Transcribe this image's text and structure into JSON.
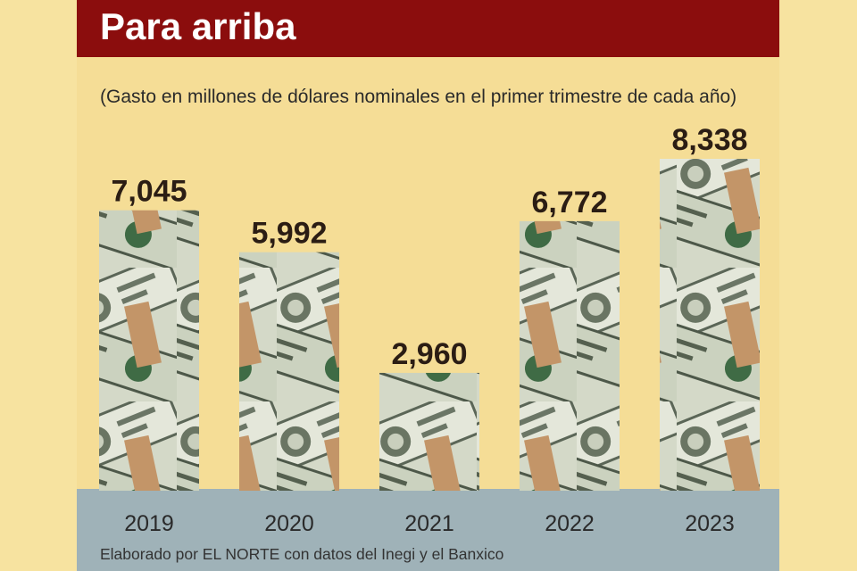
{
  "header": {
    "title": "Para arriba"
  },
  "subtitle": "(Gasto en millones de dólares nominales en el primer trimestre de cada año)",
  "source": "Elaborado por EL NORTE con datos del Inegi y el Banxico",
  "colors": {
    "header_bg": "#8b0d0d",
    "panel_bg": "#f5dd96",
    "base_band": "#9fb2b8",
    "bill_green": "#cfd5c4",
    "bill_dark": "#4f5a4a",
    "paper_band": "#c69a6c"
  },
  "chart_data": {
    "type": "bar",
    "categories": [
      "2019",
      "2020",
      "2021",
      "2022",
      "2023"
    ],
    "values": [
      7045,
      5992,
      2960,
      6772,
      8338
    ],
    "value_labels": [
      "7,045",
      "5,992",
      "2,960",
      "6,772",
      "8,338"
    ],
    "title": "Para arriba",
    "subtitle": "(Gasto en millones de dólares nominales en el primer trimestre de cada año)",
    "ylim": [
      0,
      8338
    ],
    "grid": false,
    "legend": "none",
    "bar_fill": "banknote photo texture"
  }
}
